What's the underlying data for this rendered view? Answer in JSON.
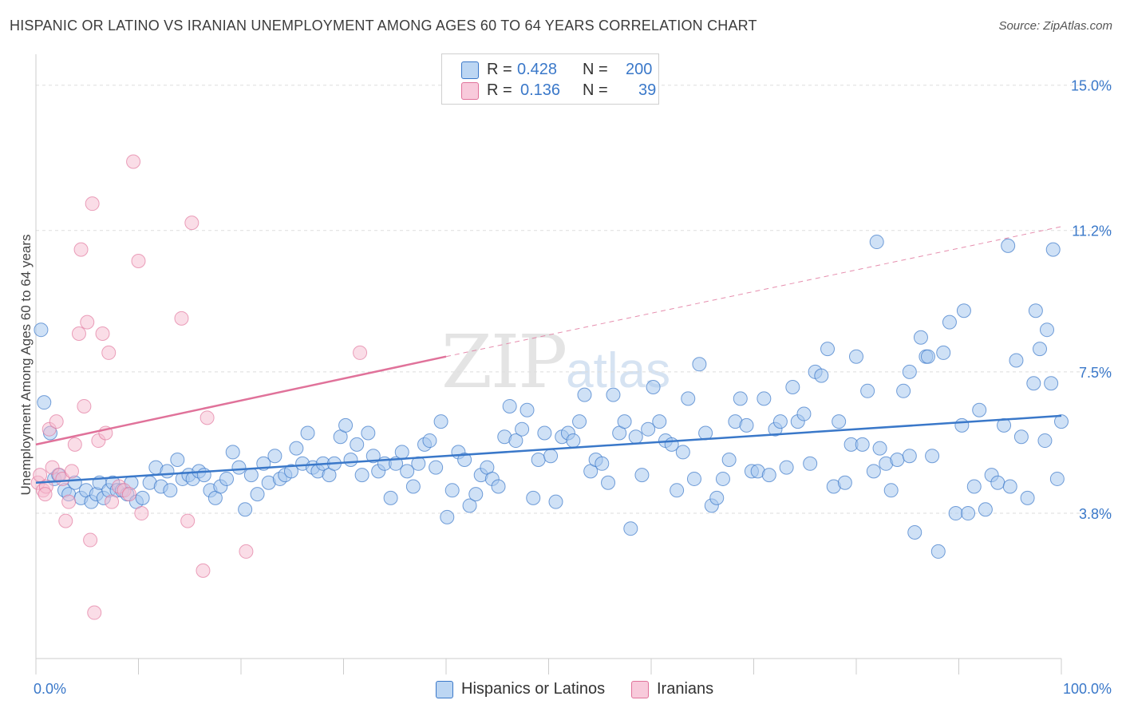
{
  "title": "HISPANIC OR LATINO VS IRANIAN UNEMPLOYMENT AMONG AGES 60 TO 64 YEARS CORRELATION CHART",
  "source": "Source: ZipAtlas.com",
  "watermark": {
    "main": "ZIP",
    "sub": "atlas"
  },
  "legend": {
    "series1": {
      "r_label": "R =",
      "r_value": "0.428",
      "n_label": "N =",
      "n_value": "200"
    },
    "series2": {
      "r_label": "R =",
      "r_value": "0.136",
      "n_label": "N =",
      "n_value": "39"
    }
  },
  "colors": {
    "blue": "#3a78c9",
    "blue_fill": "#a8c8ee",
    "pink": "#e0729a",
    "pink_fill": "#f5bcd0",
    "grid": "#d9d9d9"
  },
  "chart_data": {
    "type": "scatter",
    "xlabel": "",
    "ylabel": "Unemployment Among Ages 60 to 64 years",
    "xlim": [
      0,
      100
    ],
    "ylim": [
      0,
      15.6
    ],
    "x_tick_labels": [
      "0.0%",
      "100.0%"
    ],
    "y_ticks": [
      3.8,
      7.5,
      11.2,
      15.0
    ],
    "y_tick_labels": [
      "3.8%",
      "7.5%",
      "11.2%",
      "15.0%"
    ],
    "series": [
      {
        "name": "Hispanics or Latinos",
        "color": "#3a78c9",
        "trend": {
          "x": [
            0,
            100
          ],
          "y": [
            4.6,
            6.35
          ],
          "dashed": false
        },
        "points": [
          [
            0.5,
            8.6
          ],
          [
            0.8,
            6.7
          ],
          [
            1.4,
            5.9
          ],
          [
            1.8,
            4.7
          ],
          [
            2.2,
            4.8
          ],
          [
            2.8,
            4.4
          ],
          [
            3.2,
            4.3
          ],
          [
            3.8,
            4.6
          ],
          [
            4.4,
            4.2
          ],
          [
            4.9,
            4.4
          ],
          [
            5.4,
            4.1
          ],
          [
            5.9,
            4.3
          ],
          [
            6.2,
            4.6
          ],
          [
            6.6,
            4.2
          ],
          [
            7.1,
            4.4
          ],
          [
            7.5,
            4.6
          ],
          [
            7.9,
            4.4
          ],
          [
            8.4,
            4.4
          ],
          [
            8.9,
            4.3
          ],
          [
            9.3,
            4.6
          ],
          [
            9.8,
            4.1
          ],
          [
            10.4,
            4.2
          ],
          [
            11.1,
            4.6
          ],
          [
            11.7,
            5.0
          ],
          [
            12.2,
            4.5
          ],
          [
            12.8,
            4.9
          ],
          [
            13.1,
            4.4
          ],
          [
            13.8,
            5.2
          ],
          [
            14.3,
            4.7
          ],
          [
            14.9,
            4.8
          ],
          [
            15.3,
            4.7
          ],
          [
            15.9,
            4.9
          ],
          [
            16.4,
            4.8
          ],
          [
            17.0,
            4.4
          ],
          [
            17.5,
            4.2
          ],
          [
            18.0,
            4.5
          ],
          [
            18.6,
            4.7
          ],
          [
            19.2,
            5.4
          ],
          [
            19.8,
            5.0
          ],
          [
            20.4,
            3.9
          ],
          [
            21.0,
            4.8
          ],
          [
            21.6,
            4.3
          ],
          [
            22.2,
            5.1
          ],
          [
            22.7,
            4.6
          ],
          [
            23.3,
            5.3
          ],
          [
            23.8,
            4.7
          ],
          [
            24.3,
            4.8
          ],
          [
            24.9,
            4.9
          ],
          [
            25.4,
            5.5
          ],
          [
            26.0,
            5.1
          ],
          [
            26.5,
            5.9
          ],
          [
            27.0,
            5.0
          ],
          [
            27.5,
            4.9
          ],
          [
            28.0,
            5.1
          ],
          [
            28.6,
            4.8
          ],
          [
            29.1,
            5.1
          ],
          [
            29.7,
            5.8
          ],
          [
            30.2,
            6.1
          ],
          [
            30.7,
            5.2
          ],
          [
            31.3,
            5.6
          ],
          [
            31.8,
            4.8
          ],
          [
            32.4,
            5.9
          ],
          [
            32.9,
            5.3
          ],
          [
            33.4,
            4.9
          ],
          [
            34.0,
            5.1
          ],
          [
            34.6,
            4.2
          ],
          [
            35.1,
            5.1
          ],
          [
            35.7,
            5.4
          ],
          [
            36.2,
            4.9
          ],
          [
            36.8,
            4.5
          ],
          [
            37.3,
            5.1
          ],
          [
            37.9,
            5.6
          ],
          [
            38.4,
            5.7
          ],
          [
            39.0,
            5.0
          ],
          [
            39.5,
            6.2
          ],
          [
            40.1,
            3.7
          ],
          [
            40.6,
            4.4
          ],
          [
            41.2,
            5.4
          ],
          [
            41.8,
            5.2
          ],
          [
            42.3,
            4.0
          ],
          [
            42.9,
            4.3
          ],
          [
            43.4,
            4.8
          ],
          [
            44.0,
            5.0
          ],
          [
            44.5,
            4.7
          ],
          [
            45.1,
            4.5
          ],
          [
            45.7,
            5.8
          ],
          [
            46.2,
            6.6
          ],
          [
            46.8,
            5.7
          ],
          [
            47.4,
            6.0
          ],
          [
            47.9,
            6.5
          ],
          [
            48.5,
            4.2
          ],
          [
            49.0,
            5.2
          ],
          [
            49.6,
            5.9
          ],
          [
            50.2,
            5.3
          ],
          [
            50.7,
            4.1
          ],
          [
            51.3,
            5.8
          ],
          [
            51.9,
            5.9
          ],
          [
            52.4,
            5.7
          ],
          [
            53.0,
            6.2
          ],
          [
            53.5,
            6.9
          ],
          [
            54.1,
            4.9
          ],
          [
            54.6,
            5.2
          ],
          [
            55.2,
            5.1
          ],
          [
            55.8,
            4.6
          ],
          [
            56.3,
            6.9
          ],
          [
            56.9,
            5.9
          ],
          [
            57.4,
            6.2
          ],
          [
            58.0,
            3.4
          ],
          [
            58.5,
            5.8
          ],
          [
            59.1,
            4.8
          ],
          [
            59.7,
            6.0
          ],
          [
            60.2,
            7.1
          ],
          [
            60.8,
            6.2
          ],
          [
            61.4,
            5.7
          ],
          [
            62.0,
            5.6
          ],
          [
            62.5,
            4.4
          ],
          [
            63.1,
            5.4
          ],
          [
            63.6,
            6.8
          ],
          [
            64.2,
            4.7
          ],
          [
            64.7,
            7.7
          ],
          [
            65.3,
            5.9
          ],
          [
            65.9,
            4.0
          ],
          [
            66.4,
            4.2
          ],
          [
            67.0,
            4.7
          ],
          [
            67.6,
            5.2
          ],
          [
            68.2,
            6.2
          ],
          [
            68.7,
            6.8
          ],
          [
            69.3,
            6.1
          ],
          [
            69.8,
            4.9
          ],
          [
            70.4,
            4.9
          ],
          [
            71.0,
            6.8
          ],
          [
            71.5,
            4.8
          ],
          [
            72.1,
            6.0
          ],
          [
            72.6,
            6.2
          ],
          [
            73.2,
            5.0
          ],
          [
            73.8,
            7.1
          ],
          [
            74.3,
            6.2
          ],
          [
            74.9,
            6.4
          ],
          [
            75.5,
            5.1
          ],
          [
            76.0,
            7.5
          ],
          [
            76.6,
            7.4
          ],
          [
            77.2,
            8.1
          ],
          [
            77.8,
            4.5
          ],
          [
            78.3,
            6.2
          ],
          [
            78.9,
            4.6
          ],
          [
            79.5,
            5.6
          ],
          [
            80.0,
            7.9
          ],
          [
            80.6,
            5.6
          ],
          [
            81.1,
            7.0
          ],
          [
            81.7,
            4.9
          ],
          [
            82.3,
            5.5
          ],
          [
            82.9,
            5.1
          ],
          [
            83.4,
            4.4
          ],
          [
            84.0,
            5.2
          ],
          [
            84.6,
            7.0
          ],
          [
            85.2,
            5.3
          ],
          [
            85.7,
            3.3
          ],
          [
            86.3,
            8.4
          ],
          [
            86.8,
            7.9
          ],
          [
            87.4,
            5.3
          ],
          [
            88.0,
            2.8
          ],
          [
            88.5,
            8.0
          ],
          [
            89.1,
            8.8
          ],
          [
            89.7,
            3.8
          ],
          [
            90.3,
            6.1
          ],
          [
            90.9,
            3.8
          ],
          [
            91.5,
            4.5
          ],
          [
            92.0,
            6.5
          ],
          [
            92.6,
            3.9
          ],
          [
            93.2,
            4.8
          ],
          [
            93.8,
            4.6
          ],
          [
            94.4,
            6.1
          ],
          [
            95.0,
            4.5
          ],
          [
            95.6,
            7.8
          ],
          [
            96.1,
            5.8
          ],
          [
            96.7,
            4.2
          ],
          [
            97.3,
            7.2
          ],
          [
            97.9,
            8.1
          ],
          [
            98.4,
            5.7
          ],
          [
            99.0,
            7.2
          ],
          [
            99.6,
            4.7
          ],
          [
            100.0,
            6.2
          ],
          [
            94.8,
            10.8
          ],
          [
            82.0,
            10.9
          ],
          [
            99.2,
            10.7
          ],
          [
            90.5,
            9.1
          ],
          [
            97.5,
            9.1
          ],
          [
            98.6,
            8.6
          ],
          [
            87.0,
            7.9
          ],
          [
            85.2,
            7.5
          ]
        ]
      },
      {
        "name": "Iranians",
        "color": "#e0729a",
        "trend": {
          "x": [
            0,
            40
          ],
          "y": [
            5.6,
            7.9
          ],
          "dashed": false,
          "extend_to": [
            100,
            11.3
          ]
        },
        "points": [
          [
            0.2,
            4.6
          ],
          [
            0.4,
            4.8
          ],
          [
            0.7,
            4.4
          ],
          [
            1.0,
            4.5
          ],
          [
            1.3,
            6.0
          ],
          [
            1.6,
            5.0
          ],
          [
            2.0,
            6.2
          ],
          [
            2.3,
            4.8
          ],
          [
            2.6,
            4.7
          ],
          [
            2.9,
            3.6
          ],
          [
            3.2,
            4.1
          ],
          [
            3.5,
            4.9
          ],
          [
            3.8,
            5.6
          ],
          [
            4.2,
            8.5
          ],
          [
            4.4,
            10.7
          ],
          [
            4.7,
            6.6
          ],
          [
            5.0,
            8.8
          ],
          [
            5.3,
            3.1
          ],
          [
            5.5,
            11.9
          ],
          [
            5.7,
            1.2
          ],
          [
            6.1,
            5.7
          ],
          [
            6.5,
            8.5
          ],
          [
            6.8,
            5.9
          ],
          [
            7.1,
            8.0
          ],
          [
            7.4,
            4.1
          ],
          [
            8.1,
            4.5
          ],
          [
            8.6,
            4.4
          ],
          [
            9.1,
            4.3
          ],
          [
            9.5,
            13.0
          ],
          [
            10.0,
            10.4
          ],
          [
            10.3,
            3.8
          ],
          [
            14.2,
            8.9
          ],
          [
            14.8,
            3.6
          ],
          [
            15.2,
            11.4
          ],
          [
            16.3,
            2.3
          ],
          [
            16.7,
            6.3
          ],
          [
            20.5,
            2.8
          ],
          [
            31.6,
            8.0
          ],
          [
            0.9,
            4.3
          ]
        ]
      }
    ]
  },
  "bottom_legend": [
    "Hispanics or Latinos",
    "Iranians"
  ]
}
